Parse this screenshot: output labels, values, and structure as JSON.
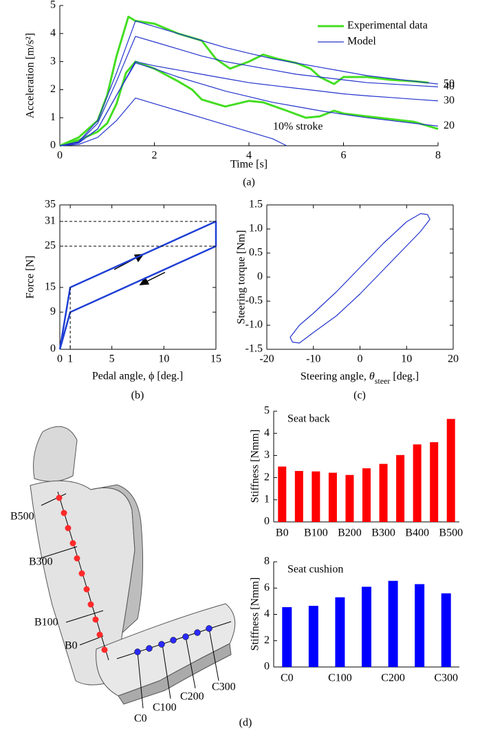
{
  "chart_data": [
    {
      "type": "line",
      "xlabel": "Time [s]",
      "ylabel": "Acceleration [m/s²]",
      "caption": "(a)",
      "xlim": [
        0,
        8
      ],
      "ylim": [
        0,
        5
      ],
      "xticks": [
        0,
        2,
        4,
        6,
        8
      ],
      "yticks": [
        0,
        1,
        2,
        3,
        4,
        5
      ],
      "legend": [
        {
          "name": "Experimental data",
          "color": "#44dd22"
        },
        {
          "name": "Model",
          "color": "#2233cc"
        }
      ],
      "legend_position": "upper right",
      "series": [
        {
          "color": "#44dd22",
          "x": [
            0,
            0.4,
            0.8,
            1.0,
            1.2,
            1.45,
            1.6,
            2.0,
            2.5,
            3.0,
            3.3,
            3.6,
            4.0,
            4.3,
            4.6,
            5.0,
            5.3,
            5.5,
            5.8,
            6.0,
            6.5,
            7.0,
            7.5,
            7.8
          ],
          "values": [
            0,
            0.3,
            0.9,
            1.8,
            3.2,
            4.6,
            4.45,
            4.35,
            4.0,
            3.75,
            3.1,
            2.75,
            3.0,
            3.25,
            3.1,
            2.95,
            2.75,
            2.45,
            2.2,
            2.45,
            2.45,
            2.35,
            2.3,
            2.25
          ]
        },
        {
          "color": "#44dd22",
          "x": [
            0,
            0.4,
            0.8,
            1.0,
            1.2,
            1.4,
            1.6,
            2.0,
            2.5,
            2.8,
            3.0,
            3.5,
            4.0,
            4.3,
            4.8,
            5.2,
            5.5,
            5.8,
            6.0,
            6.5,
            7.0,
            7.5,
            8.0
          ],
          "values": [
            0,
            0.2,
            0.5,
            0.8,
            1.5,
            2.6,
            3.0,
            2.75,
            2.3,
            2.0,
            1.65,
            1.4,
            1.6,
            1.55,
            1.25,
            1.0,
            1.05,
            1.25,
            1.15,
            1.05,
            0.95,
            0.85,
            0.6
          ]
        },
        {
          "color": "#2233cc",
          "label": "50",
          "x": [
            0,
            0.4,
            0.8,
            1.2,
            1.6,
            2,
            2.5,
            3,
            3.5,
            4,
            4.5,
            5,
            5.5,
            6,
            6.5,
            7,
            7.5,
            8
          ],
          "values": [
            0,
            0.15,
            0.9,
            2.6,
            4.45,
            4.25,
            4.0,
            3.75,
            3.5,
            3.3,
            3.1,
            2.95,
            2.8,
            2.65,
            2.5,
            2.4,
            2.3,
            2.2
          ]
        },
        {
          "color": "#2233cc",
          "label": "40",
          "x": [
            0,
            0.4,
            0.8,
            1.2,
            1.6,
            2,
            2.5,
            3,
            3.5,
            4,
            4.5,
            5,
            5.5,
            6,
            6.5,
            7,
            7.5,
            8
          ],
          "values": [
            0,
            0.12,
            0.8,
            2.3,
            3.9,
            3.7,
            3.45,
            3.2,
            3.0,
            2.85,
            2.7,
            2.55,
            2.45,
            2.35,
            2.25,
            2.2,
            2.15,
            2.1
          ]
        },
        {
          "color": "#2233cc",
          "label": "30",
          "x": [
            0,
            0.4,
            0.8,
            1.2,
            1.6,
            2,
            2.5,
            3,
            3.5,
            4,
            4.5,
            5,
            5.5,
            6,
            6.5,
            7,
            7.5,
            8
          ],
          "values": [
            0,
            0.1,
            0.6,
            1.8,
            3.0,
            2.85,
            2.7,
            2.55,
            2.4,
            2.25,
            2.15,
            2.05,
            1.95,
            1.85,
            1.78,
            1.72,
            1.66,
            1.6
          ]
        },
        {
          "color": "#2233cc",
          "label": "20",
          "x": [
            0,
            0.4,
            0.8,
            1.2,
            1.6,
            2,
            2.5,
            3,
            3.5,
            4,
            4.5,
            5,
            5.5,
            6,
            6.5,
            7,
            7.5,
            8
          ],
          "values": [
            0,
            0.1,
            0.6,
            1.8,
            2.95,
            2.75,
            2.45,
            2.2,
            1.95,
            1.75,
            1.55,
            1.4,
            1.25,
            1.12,
            1.0,
            0.9,
            0.8,
            0.7
          ]
        },
        {
          "color": "#2233cc",
          "label": "10% stroke",
          "x": [
            0,
            0.4,
            0.8,
            1.2,
            1.6,
            2,
            2.5,
            3,
            3.5,
            4,
            4.5,
            4.8
          ],
          "values": [
            0,
            0.05,
            0.3,
            0.9,
            1.7,
            1.5,
            1.25,
            1.0,
            0.75,
            0.5,
            0.25,
            0
          ]
        }
      ]
    },
    {
      "type": "line",
      "xlabel": "Pedal angle, ϕ [deg.]",
      "ylabel": "Force [N]",
      "caption": "(b)",
      "xlim": [
        0,
        15
      ],
      "ylim": [
        0,
        35
      ],
      "xticks": [
        0,
        1,
        5,
        10,
        15
      ],
      "yticks": [
        0,
        9,
        15,
        25,
        31,
        35
      ],
      "series": [
        {
          "color": "#1f3fd6",
          "x": [
            0,
            1,
            15,
            15,
            1,
            0
          ],
          "values": [
            0,
            15,
            31,
            25,
            9,
            0
          ]
        }
      ]
    },
    {
      "type": "line",
      "xlabel": [
        "Steering angle, ",
        "θ",
        "steer",
        " [deg.]"
      ],
      "ylabel": "Steering torque [Nm]",
      "caption": "(c)",
      "xlim": [
        -20,
        20
      ],
      "ylim": [
        -1.5,
        1.5
      ],
      "xticks": [
        -20,
        -10,
        0,
        10,
        20
      ],
      "yticks": [
        -1.5,
        {
          "value": -1,
          "label": "-1.0"
        },
        -0.5,
        0,
        0.5,
        {
          "value": 1,
          "label": "1.0"
        },
        1.5
      ],
      "series": [
        {
          "color": "#2233cc",
          "x": [
            -15,
            -13,
            -10,
            -5,
            0,
            5,
            10,
            13,
            14.5,
            15,
            13,
            10,
            5,
            0,
            -5,
            -10,
            -13,
            -14.5,
            -15
          ],
          "values": [
            -1.25,
            -1.0,
            -0.75,
            -0.3,
            0.2,
            0.7,
            1.15,
            1.32,
            1.3,
            1.2,
            0.95,
            0.65,
            0.15,
            -0.35,
            -0.8,
            -1.15,
            -1.37,
            -1.35,
            -1.25
          ]
        }
      ]
    },
    {
      "type": "bar",
      "title": "Seat back",
      "ylabel": "Stiffness [Nmm]",
      "color": "#ff0000",
      "categories": [
        "B0",
        null,
        "B100",
        null,
        "B200",
        null,
        "B300",
        null,
        "B400",
        null,
        "B500"
      ],
      "values": [
        2.5,
        2.3,
        2.28,
        2.22,
        2.12,
        2.42,
        2.62,
        3.02,
        3.5,
        3.6,
        4.65
      ],
      "ylim": [
        0,
        5
      ],
      "yticks": [
        0,
        1,
        2,
        3,
        4,
        5
      ]
    },
    {
      "type": "bar",
      "title": "Seat cushion",
      "ylabel": "Stiffness [Nmm]",
      "color": "#0000ff",
      "categories": [
        "C0",
        null,
        "C100",
        null,
        "C200",
        null,
        "C300"
      ],
      "values": [
        4.55,
        4.65,
        5.3,
        6.1,
        6.55,
        6.3,
        5.6
      ],
      "ylim": [
        0,
        8
      ],
      "yticks": [
        0,
        2,
        4,
        6,
        8
      ]
    }
  ],
  "seat_diagram": {
    "labels": [
      "B500",
      "B300",
      "B100",
      "B0",
      "C0",
      "C100",
      "C200",
      "C300"
    ],
    "caption": "(d)"
  }
}
